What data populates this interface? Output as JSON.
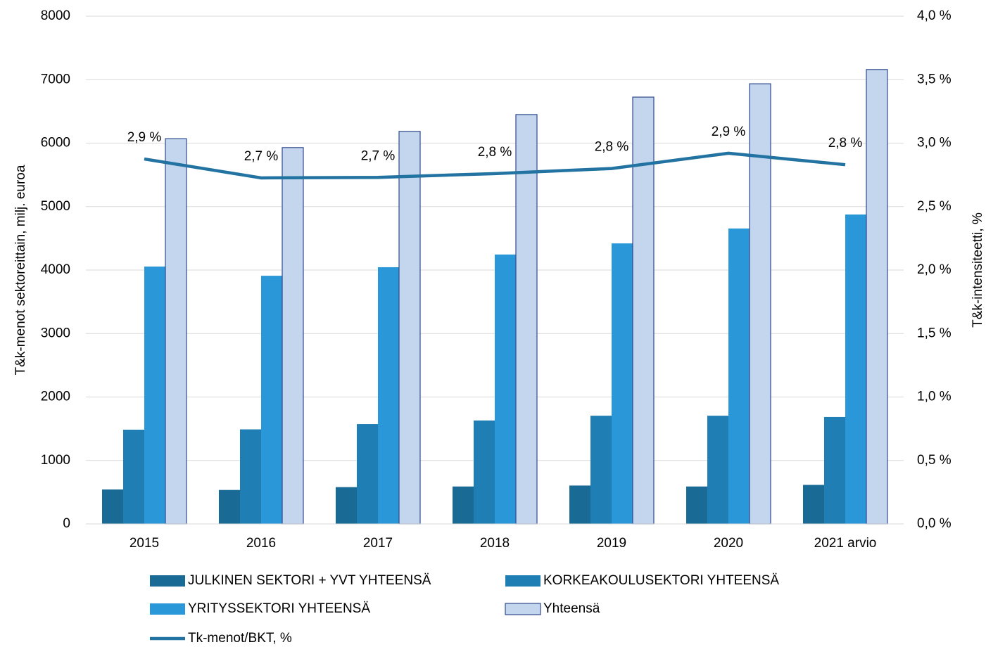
{
  "chart_data": {
    "type": "bar",
    "categories": [
      "2015",
      "2016",
      "2017",
      "2018",
      "2019",
      "2020",
      "2021 arvio"
    ],
    "ylabel": "T&k-menot sektoreittain, milj. euroa",
    "y2label": "T&k-intensiteetti, %",
    "ylim": [
      0,
      8000
    ],
    "yticks": [
      0,
      1000,
      2000,
      3000,
      4000,
      5000,
      6000,
      7000,
      8000
    ],
    "y2lim": [
      0,
      4
    ],
    "y2ticks": [
      {
        "value": 0,
        "label": "0,0 %"
      },
      {
        "value": 0.5,
        "label": "0,5 %"
      },
      {
        "value": 1,
        "label": "1,0 %"
      },
      {
        "value": 1.5,
        "label": "1,5 %"
      },
      {
        "value": 2,
        "label": "2,0 %"
      },
      {
        "value": 2.5,
        "label": "2,5 %"
      },
      {
        "value": 3,
        "label": "3,0 %"
      },
      {
        "value": 3.5,
        "label": "3,5 %"
      },
      {
        "value": 4,
        "label": "4,0 %"
      }
    ],
    "grid": true,
    "series": [
      {
        "name": "JULKINEN SEKTORI + YVT YHTEENSÄ",
        "color": "#1a6a96",
        "values": [
          543,
          535,
          580,
          590,
          605,
          590,
          615
        ]
      },
      {
        "name": "KORKEAKOULUSEKTORI YHTEENSÄ",
        "color": "#1f7fb4",
        "values": [
          1485,
          1490,
          1573,
          1630,
          1705,
          1705,
          1685
        ]
      },
      {
        "name": "YRITYSSEKTORI YHTEENSÄ",
        "color": "#2a98d8",
        "values": [
          4055,
          3910,
          4045,
          4245,
          4420,
          4655,
          4875
        ]
      },
      {
        "name": "Yhteensä",
        "color": "#c3d6ee",
        "edgecolor": "#2e4a8c",
        "values": [
          6070,
          5930,
          6185,
          6450,
          6725,
          6935,
          7160
        ]
      },
      {
        "name": "Tk-menot/BKT, %",
        "type": "line",
        "axis": "y2",
        "color": "#2273a1",
        "values": [
          2.875,
          2.726,
          2.73,
          2.76,
          2.8,
          2.92,
          2.83
        ],
        "value_labels": [
          "2,9 %",
          "2,7 %",
          "2,7 %",
          "2,8 %",
          "2,8 %",
          "2,9 %",
          "2,8 %"
        ]
      }
    ]
  }
}
